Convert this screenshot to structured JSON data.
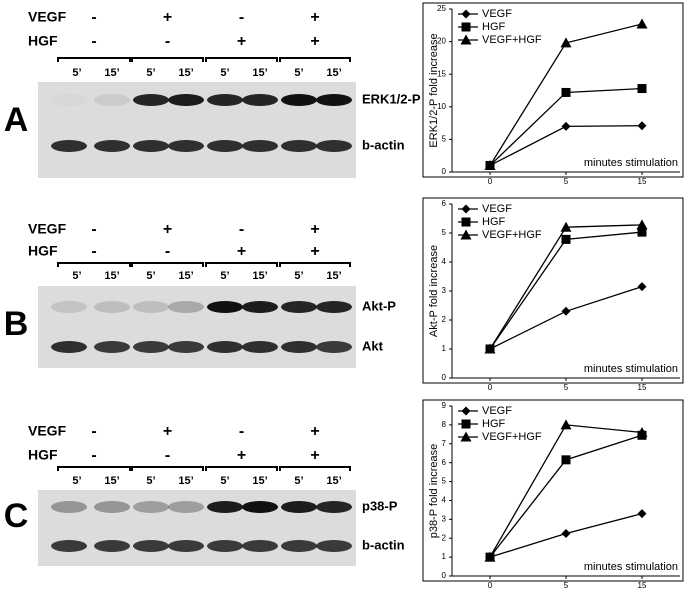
{
  "blots": [
    {
      "letter": "A",
      "rows": [
        {
          "label": "VEGF",
          "signs": [
            "-",
            "+",
            "-",
            "+"
          ]
        },
        {
          "label": "HGF",
          "signs": [
            "-",
            "-",
            "+",
            "+"
          ]
        }
      ],
      "times": [
        "5’",
        "15’"
      ],
      "bands": [
        "ERK1/2-P",
        "b-actin"
      ]
    },
    {
      "letter": "B",
      "rows": [
        {
          "label": "VEGF",
          "signs": [
            "-",
            "+",
            "-",
            "+"
          ]
        },
        {
          "label": "HGF",
          "signs": [
            "-",
            "-",
            "+",
            "+"
          ]
        }
      ],
      "times": [
        "5’",
        "15’"
      ],
      "bands": [
        "Akt-P",
        "Akt"
      ]
    },
    {
      "letter": "C",
      "rows": [
        {
          "label": "VEGF",
          "signs": [
            "-",
            "+",
            "-",
            "+"
          ]
        },
        {
          "label": "HGF",
          "signs": [
            "-",
            "-",
            "+",
            "+"
          ]
        }
      ],
      "times": [
        "5’",
        "15’"
      ],
      "bands": [
        "p38-P",
        "b-actin"
      ]
    }
  ],
  "chart_data": [
    {
      "type": "line",
      "categories": [
        "0",
        "5",
        "15"
      ],
      "xlabel": "minutes stimulation",
      "ylabel": "ERK1/2-P fold increase",
      "ylim": [
        0,
        25
      ],
      "yticks": [
        0,
        5,
        10,
        15,
        20,
        25
      ],
      "series": [
        {
          "name": "VEGF",
          "color": "#000000",
          "marker": "diamond",
          "values": [
            1,
            7,
            7.1
          ]
        },
        {
          "name": "HGF",
          "color": "#000000",
          "marker": "square",
          "values": [
            1,
            12.2,
            12.8
          ]
        },
        {
          "name": "VEGF+HGF",
          "color": "#000000",
          "marker": "triangle",
          "values": [
            1,
            19.8,
            22.7
          ]
        }
      ]
    },
    {
      "type": "line",
      "categories": [
        "0",
        "5",
        "15"
      ],
      "xlabel": "minutes stimulation",
      "ylabel": "Akt-P fold increase",
      "ylim": [
        0,
        6
      ],
      "yticks": [
        0,
        1,
        2,
        3,
        4,
        5,
        6
      ],
      "series": [
        {
          "name": "VEGF",
          "color": "#000000",
          "marker": "diamond",
          "values": [
            1,
            2.3,
            3.15
          ]
        },
        {
          "name": "HGF",
          "color": "#000000",
          "marker": "square",
          "values": [
            1,
            4.78,
            5.03
          ]
        },
        {
          "name": "VEGF+HGF",
          "color": "#000000",
          "marker": "triangle",
          "values": [
            1,
            5.2,
            5.28
          ]
        }
      ]
    },
    {
      "type": "line",
      "categories": [
        "0",
        "5",
        "15"
      ],
      "xlabel": "minutes stimulation",
      "ylabel": "p38-P fold increase",
      "ylim": [
        0,
        9
      ],
      "yticks": [
        0,
        1,
        2,
        3,
        4,
        5,
        6,
        7,
        8,
        9
      ],
      "series": [
        {
          "name": "VEGF",
          "color": "#000000",
          "marker": "diamond",
          "values": [
            1,
            2.25,
            3.3
          ]
        },
        {
          "name": "HGF",
          "color": "#000000",
          "marker": "square",
          "values": [
            1,
            6.15,
            7.45
          ]
        },
        {
          "name": "VEGF+HGF",
          "color": "#000000",
          "marker": "triangle",
          "values": [
            1,
            8.0,
            7.6
          ]
        }
      ]
    }
  ]
}
